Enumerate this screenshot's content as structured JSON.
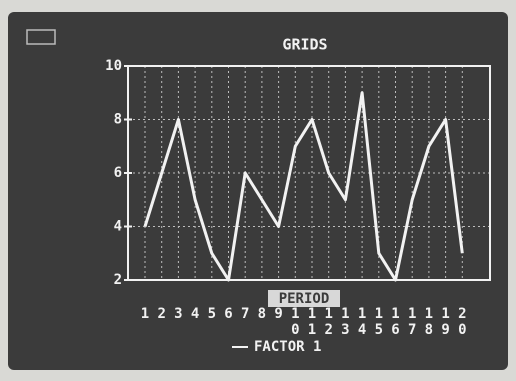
{
  "chart_data": {
    "type": "line",
    "title": "GRIDS",
    "x_label": "PERIOD",
    "categories": [
      "1",
      "2",
      "3",
      "4",
      "5",
      "6",
      "7",
      "8",
      "9",
      "10",
      "11",
      "12",
      "13",
      "14",
      "15",
      "16",
      "17",
      "18",
      "19",
      "20"
    ],
    "series": [
      {
        "name": "FACTOR 1",
        "color": "#f2f2f2",
        "values": [
          4,
          6,
          8,
          5,
          3,
          2,
          6,
          5,
          4,
          7,
          8,
          6,
          5,
          9,
          3,
          2,
          5,
          7,
          8,
          3
        ]
      }
    ],
    "ylim": [
      2,
      10
    ],
    "yticks": [
      2,
      4,
      6,
      8,
      10
    ],
    "grid": true
  }
}
